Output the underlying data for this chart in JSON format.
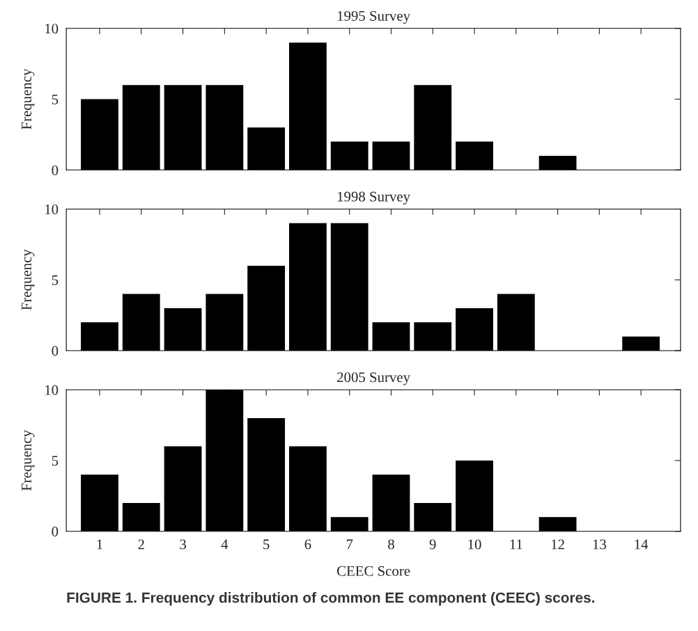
{
  "chart_data": [
    {
      "type": "bar",
      "title": "1995 Survey",
      "ylabel": "Frequency",
      "categories": [
        "1",
        "2",
        "3",
        "4",
        "5",
        "6",
        "7",
        "8",
        "9",
        "10",
        "11",
        "12",
        "13",
        "14"
      ],
      "values": [
        5,
        6,
        6,
        6,
        3,
        9,
        2,
        2,
        6,
        2,
        0,
        1,
        0,
        0
      ],
      "color": "#000000",
      "ylim": [
        0,
        10
      ],
      "yticks": [
        0,
        5,
        10
      ],
      "grid": false,
      "legend": false,
      "tick_labels": "y"
    },
    {
      "type": "bar",
      "title": "1998 Survey",
      "ylabel": "Frequency",
      "categories": [
        "1",
        "2",
        "3",
        "4",
        "5",
        "6",
        "7",
        "8",
        "9",
        "10",
        "11",
        "12",
        "13",
        "14"
      ],
      "values": [
        2,
        4,
        3,
        4,
        6,
        9,
        9,
        2,
        2,
        3,
        4,
        0,
        0,
        1
      ],
      "color": "#000000",
      "ylim": [
        0,
        10
      ],
      "yticks": [
        0,
        5,
        10
      ],
      "grid": false,
      "legend": false,
      "tick_labels": "y"
    },
    {
      "type": "bar",
      "title": "2005 Survey",
      "ylabel": "Frequency",
      "xlabel": "CEEC Score",
      "categories": [
        "1",
        "2",
        "3",
        "4",
        "5",
        "6",
        "7",
        "8",
        "9",
        "10",
        "11",
        "12",
        "13",
        "14"
      ],
      "values": [
        4,
        2,
        6,
        10,
        8,
        6,
        1,
        4,
        2,
        5,
        0,
        1,
        0,
        0
      ],
      "color": "#000000",
      "ylim": [
        0,
        10
      ],
      "yticks": [
        0,
        5,
        10
      ],
      "grid": false,
      "legend": false,
      "annotations": [
        "FIGURE 1. Frequency distribution of common EE component (CEEC) scores."
      ]
    }
  ]
}
